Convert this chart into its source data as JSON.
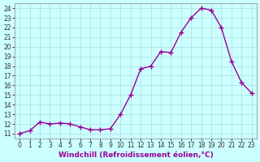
{
  "x": [
    0,
    1,
    2,
    3,
    4,
    5,
    6,
    7,
    8,
    9,
    10,
    11,
    12,
    13,
    14,
    15,
    16,
    17,
    18,
    19,
    20,
    21,
    22,
    23
  ],
  "y": [
    11.0,
    11.3,
    12.2,
    12.0,
    12.1,
    12.0,
    11.7,
    11.4,
    11.4,
    11.5,
    13.0,
    15.0,
    17.7,
    18.0,
    19.5,
    19.4,
    21.5,
    23.0,
    24.0,
    23.8,
    22.0,
    18.5,
    16.3,
    15.2
  ],
  "line_color": "#990099",
  "marker": "+",
  "marker_color": "#990099",
  "bg_color": "#ccffff",
  "grid_color": "#aadddd",
  "xlabel": "Windchill (Refroidissement éolien,°C)",
  "ylabel": "",
  "title": "",
  "xlim": [
    -0.5,
    23.5
  ],
  "ylim": [
    10.5,
    24.5
  ],
  "yticks": [
    11,
    12,
    13,
    14,
    15,
    16,
    17,
    18,
    19,
    20,
    21,
    22,
    23,
    24
  ],
  "xticks": [
    0,
    1,
    2,
    3,
    4,
    5,
    6,
    7,
    8,
    9,
    10,
    11,
    12,
    13,
    14,
    15,
    16,
    17,
    18,
    19,
    20,
    21,
    22,
    23
  ],
  "tick_fontsize": 5.5,
  "xlabel_fontsize": 6.5,
  "linewidth": 1.0,
  "markersize": 4
}
